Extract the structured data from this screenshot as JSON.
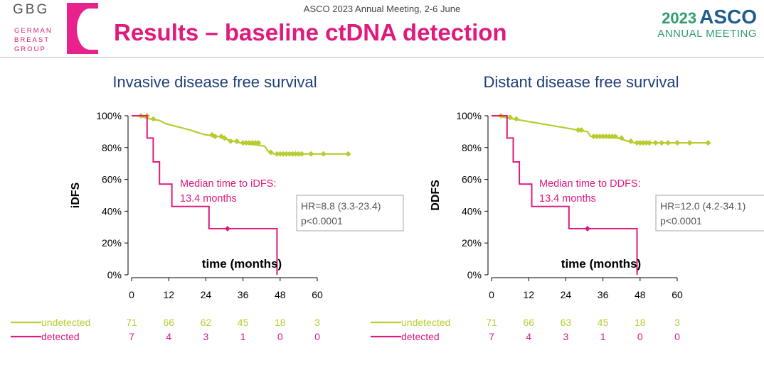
{
  "header": {
    "logo_letters": "GBG",
    "logo_sub": [
      "GERMAN",
      "BREAST",
      "GROUP"
    ],
    "meeting": "ASCO 2023 Annual Meeting, 2-6 June",
    "title": "Results – baseline ctDNA detection",
    "asco_year": "2023",
    "asco_name": "ASCO",
    "asco_sub": "ANNUAL MEETING"
  },
  "colors": {
    "undetected": "#b8cc2e",
    "detected": "#e0197d",
    "title": "#e0197d",
    "panel_title": "#1f3f7a"
  },
  "chart_data": [
    {
      "type": "line",
      "title": "Invasive disease free survival",
      "ylabel": "iDFS",
      "xlabel": "time (months)",
      "xlim": [
        0,
        72
      ],
      "ylim": [
        0,
        100
      ],
      "x_ticks": [
        0,
        12,
        24,
        36,
        48,
        60
      ],
      "y_ticks": [
        0,
        20,
        40,
        60,
        80,
        100
      ],
      "y_tick_labels": [
        "0%",
        "20%",
        "40%",
        "60%",
        "80%",
        "100%"
      ],
      "annotation": [
        "Median time to iDFS:",
        "13.4 months"
      ],
      "hr_text": [
        "HR=8.8 (3.3-23.4)",
        "p<0.0001"
      ],
      "series": [
        {
          "name": "undetected",
          "color": "#b8cc2e",
          "steps": [
            [
              0,
              100
            ],
            [
              2,
              100
            ],
            [
              4,
              99
            ],
            [
              6,
              98
            ],
            [
              9,
              97
            ],
            [
              11,
              95
            ],
            [
              13,
              94
            ],
            [
              15,
              93
            ],
            [
              17,
              92
            ],
            [
              19,
              91
            ],
            [
              22,
              89
            ],
            [
              24,
              88
            ],
            [
              28,
              87
            ],
            [
              31,
              85
            ],
            [
              33,
              84
            ],
            [
              35,
              83
            ],
            [
              43,
              81
            ],
            [
              44,
              78
            ],
            [
              46,
              76
            ],
            [
              70,
              76
            ]
          ],
          "censors": [
            [
              3,
              100
            ],
            [
              5,
              100
            ],
            [
              7,
              98
            ],
            [
              26,
              88
            ],
            [
              27,
              87
            ],
            [
              29,
              87
            ],
            [
              30,
              86
            ],
            [
              32,
              84
            ],
            [
              34,
              84
            ],
            [
              36,
              83
            ],
            [
              37,
              83
            ],
            [
              38,
              83
            ],
            [
              39,
              83
            ],
            [
              40,
              83
            ],
            [
              41,
              83
            ],
            [
              45,
              77
            ],
            [
              47,
              76
            ],
            [
              48,
              76
            ],
            [
              49,
              76
            ],
            [
              50,
              76
            ],
            [
              51,
              76
            ],
            [
              52,
              76
            ],
            [
              53,
              76
            ],
            [
              54,
              76
            ],
            [
              55,
              76
            ],
            [
              58,
              76
            ],
            [
              62,
              76
            ],
            [
              70,
              76
            ]
          ]
        },
        {
          "name": "detected",
          "color": "#e0197d",
          "steps": [
            [
              0,
              100
            ],
            [
              5,
              100
            ],
            [
              5,
              86
            ],
            [
              7,
              86
            ],
            [
              7,
              71
            ],
            [
              9,
              71
            ],
            [
              9,
              57
            ],
            [
              13,
              57
            ],
            [
              13,
              43
            ],
            [
              25,
              43
            ],
            [
              25,
              29
            ],
            [
              47,
              29
            ],
            [
              47,
              0
            ]
          ],
          "censors": [
            [
              31,
              29
            ]
          ]
        }
      ],
      "risk_table": {
        "times": [
          0,
          12,
          24,
          36,
          48,
          60
        ],
        "rows": [
          {
            "label": "undetected",
            "counts": [
              "71",
              "66",
              "62",
              "45",
              "18",
              "3"
            ]
          },
          {
            "label": "detected",
            "counts": [
              "7",
              "4",
              "3",
              "1",
              "0",
              "0"
            ]
          }
        ]
      }
    },
    {
      "type": "line",
      "title": "Distant disease free survival",
      "ylabel": "DDFS",
      "xlabel": "time (months)",
      "xlim": [
        0,
        72
      ],
      "ylim": [
        0,
        100
      ],
      "x_ticks": [
        0,
        12,
        24,
        36,
        48,
        60
      ],
      "y_ticks": [
        0,
        20,
        40,
        60,
        80,
        100
      ],
      "y_tick_labels": [
        "0%",
        "20%",
        "40%",
        "60%",
        "80%",
        "100%"
      ],
      "annotation": [
        "Median time to DDFS:",
        "13.4 months"
      ],
      "hr_text": [
        "HR=12.0 (4.2-34.1)",
        "p<0.0001"
      ],
      "series": [
        {
          "name": "undetected",
          "color": "#b8cc2e",
          "steps": [
            [
              0,
              100
            ],
            [
              2,
              100
            ],
            [
              4,
              99
            ],
            [
              7,
              98
            ],
            [
              10,
              97
            ],
            [
              13,
              96
            ],
            [
              16,
              95
            ],
            [
              19,
              94
            ],
            [
              22,
              93
            ],
            [
              25,
              92
            ],
            [
              28,
              91
            ],
            [
              31,
              90
            ],
            [
              32,
              87
            ],
            [
              41,
              86
            ],
            [
              44,
              84
            ],
            [
              46,
              83
            ],
            [
              70,
              83
            ]
          ],
          "censors": [
            [
              3,
              100
            ],
            [
              6,
              99
            ],
            [
              8,
              98
            ],
            [
              28,
              91
            ],
            [
              29,
              91
            ],
            [
              33,
              87
            ],
            [
              34,
              87
            ],
            [
              35,
              87
            ],
            [
              36,
              87
            ],
            [
              37,
              87
            ],
            [
              38,
              87
            ],
            [
              39,
              87
            ],
            [
              40,
              87
            ],
            [
              42,
              86
            ],
            [
              45,
              84
            ],
            [
              47,
              83
            ],
            [
              48,
              83
            ],
            [
              49,
              83
            ],
            [
              50,
              83
            ],
            [
              51,
              83
            ],
            [
              53,
              83
            ],
            [
              55,
              83
            ],
            [
              57,
              83
            ],
            [
              60,
              83
            ],
            [
              64,
              83
            ],
            [
              70,
              83
            ]
          ]
        },
        {
          "name": "detected",
          "color": "#e0197d",
          "steps": [
            [
              0,
              100
            ],
            [
              5,
              100
            ],
            [
              5,
              86
            ],
            [
              7,
              86
            ],
            [
              7,
              71
            ],
            [
              9,
              71
            ],
            [
              9,
              57
            ],
            [
              13,
              57
            ],
            [
              13,
              43
            ],
            [
              25,
              43
            ],
            [
              25,
              29
            ],
            [
              47,
              29
            ],
            [
              47,
              0
            ]
          ],
          "censors": [
            [
              31,
              29
            ]
          ]
        }
      ],
      "risk_table": {
        "times": [
          0,
          12,
          24,
          36,
          48,
          60
        ],
        "rows": [
          {
            "label": "undetected",
            "counts": [
              "71",
              "66",
              "63",
              "45",
              "18",
              "3"
            ]
          },
          {
            "label": "detected",
            "counts": [
              "7",
              "4",
              "3",
              "1",
              "0",
              "0"
            ]
          }
        ]
      }
    }
  ]
}
